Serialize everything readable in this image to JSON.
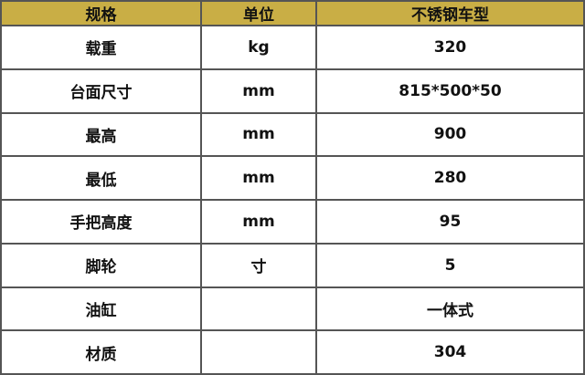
{
  "colors": {
    "header_bg": "#c9ae45",
    "border": "#555555"
  },
  "headers": [
    "规格",
    "单位",
    "不锈钢车型"
  ],
  "rows": [
    [
      "载重",
      "kg",
      "320"
    ],
    [
      "台面尺寸",
      "mm",
      "815*500*50"
    ],
    [
      "最高",
      "mm",
      "900"
    ],
    [
      "最低",
      "mm",
      "280"
    ],
    [
      "手把高度",
      "mm",
      "95"
    ],
    [
      "脚轮",
      "寸",
      "5"
    ],
    [
      "油缸",
      "",
      "一体式"
    ],
    [
      "材质",
      "",
      "304"
    ]
  ]
}
